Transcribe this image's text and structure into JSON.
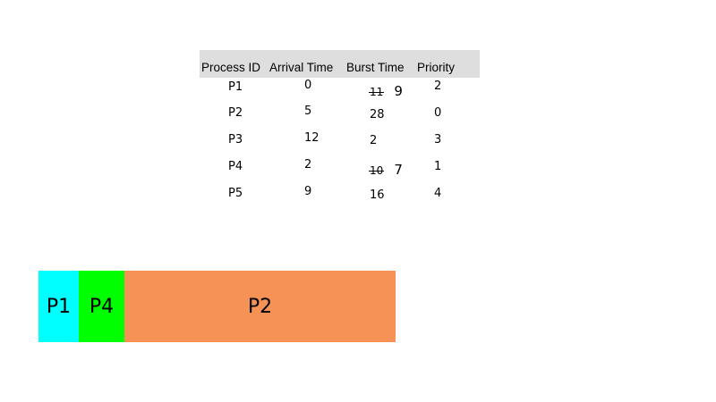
{
  "table": {
    "headers": [
      "Process ID",
      "Arrival Time",
      "Burst Time",
      "Priority"
    ],
    "rows": [
      {
        "process_id": "P1",
        "arrival_time": "0",
        "burst_time_original": "11",
        "burst_time_updated": "9",
        "priority": "2"
      },
      {
        "process_id": "P2",
        "arrival_time": "5",
        "burst_time": "28",
        "priority": "0"
      },
      {
        "process_id": "P3",
        "arrival_time": "12",
        "burst_time": "2",
        "priority": "3"
      },
      {
        "process_id": "P4",
        "arrival_time": "2",
        "burst_time_original": "10",
        "burst_time_updated": "7",
        "priority": "1"
      },
      {
        "process_id": "P5",
        "arrival_time": "9",
        "burst_time": "16",
        "priority": "4"
      }
    ]
  },
  "gantt": {
    "blocks": [
      {
        "label": "P1",
        "color": "#00ffff"
      },
      {
        "label": "P4",
        "color": "#00ff00"
      },
      {
        "label": "P2",
        "color": "#f79257"
      }
    ]
  }
}
